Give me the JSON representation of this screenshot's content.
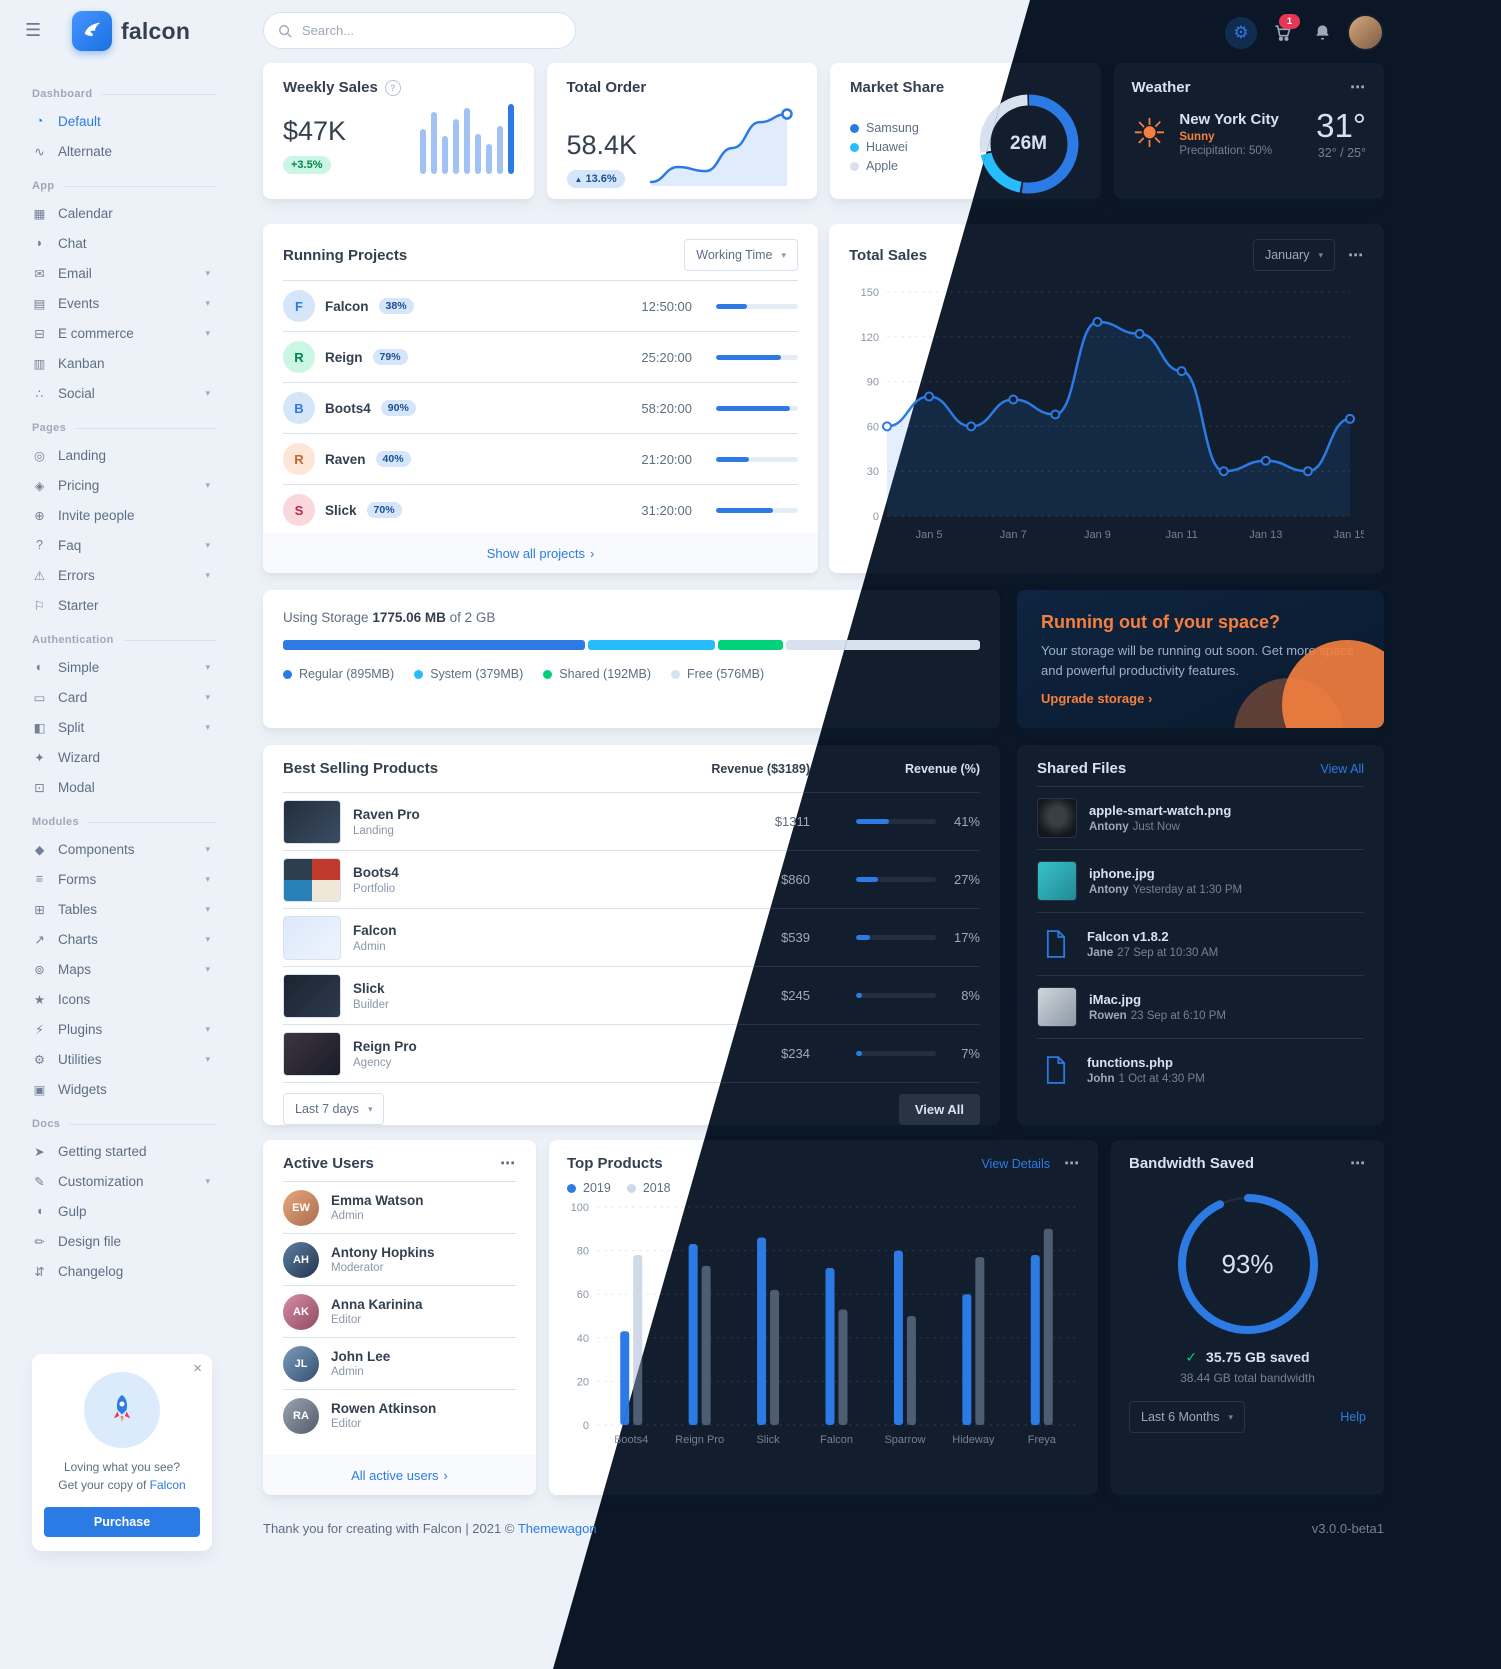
{
  "icons": {
    "hamburger": "☰",
    "ellipsis": "⋯",
    "chevron_down": "▾",
    "arrow_right": "›",
    "gear": "⚙",
    "close": "×",
    "check": "✓",
    "info": "?",
    "sun": "☀",
    "caret_up": "▲"
  },
  "colors": {
    "primary": "#2c7be5",
    "info": "#27bcfd",
    "success": "#00d27a",
    "warning": "#f5803e",
    "danger": "#e63757"
  },
  "brand": {
    "name": "falcon"
  },
  "topbar": {
    "search_placeholder": "Search...",
    "cart_badge": "1"
  },
  "sidebar": {
    "sections": [
      {
        "label": "Dashboard",
        "items": [
          {
            "label": "Default",
            "icon": "chart-pie",
            "state": "active"
          },
          {
            "label": "Alternate",
            "icon": "chart-line"
          }
        ]
      },
      {
        "label": "App",
        "items": [
          {
            "label": "Calendar",
            "icon": "calendar"
          },
          {
            "label": "Chat",
            "icon": "chat"
          },
          {
            "label": "Email",
            "icon": "email",
            "chevron": true
          },
          {
            "label": "Events",
            "icon": "events",
            "chevron": true
          },
          {
            "label": "E commerce",
            "icon": "ecommerce",
            "chevron": true
          },
          {
            "label": "Kanban",
            "icon": "kanban"
          },
          {
            "label": "Social",
            "icon": "share",
            "chevron": true
          }
        ]
      },
      {
        "label": "Pages",
        "items": [
          {
            "label": "Landing",
            "icon": "globe"
          },
          {
            "label": "Pricing",
            "icon": "tags",
            "chevron": true
          },
          {
            "label": "Invite people",
            "icon": "user-plus"
          },
          {
            "label": "Faq",
            "icon": "question",
            "chevron": true
          },
          {
            "label": "Errors",
            "icon": "warning",
            "chevron": true
          },
          {
            "label": "Starter",
            "icon": "flag"
          }
        ]
      },
      {
        "label": "Authentication",
        "items": [
          {
            "label": "Simple",
            "icon": "lock",
            "chevron": true
          },
          {
            "label": "Card",
            "icon": "card",
            "chevron": true
          },
          {
            "label": "Split",
            "icon": "split",
            "chevron": true
          },
          {
            "label": "Wizard",
            "icon": "wand"
          },
          {
            "label": "Modal",
            "icon": "modal"
          }
        ]
      },
      {
        "label": "Modules",
        "items": [
          {
            "label": "Components",
            "icon": "components",
            "chevron": true
          },
          {
            "label": "Forms",
            "icon": "forms",
            "chevron": true
          },
          {
            "label": "Tables",
            "icon": "tables",
            "chevron": true
          },
          {
            "label": "Charts",
            "icon": "charts",
            "chevron": true
          },
          {
            "label": "Maps",
            "icon": "maps",
            "chevron": true
          },
          {
            "label": "Icons",
            "icon": "star"
          },
          {
            "label": "Plugins",
            "icon": "plug",
            "chevron": true
          },
          {
            "label": "Utilities",
            "icon": "utilities",
            "chevron": true
          },
          {
            "label": "Widgets",
            "icon": "widgets"
          }
        ]
      },
      {
        "label": "Docs",
        "items": [
          {
            "label": "Getting started",
            "icon": "rocket"
          },
          {
            "label": "Customization",
            "icon": "customize",
            "chevron": true
          },
          {
            "label": "Gulp",
            "icon": "gulp"
          },
          {
            "label": "Design file",
            "icon": "pen"
          },
          {
            "label": "Changelog",
            "icon": "changelog"
          }
        ]
      }
    ],
    "promo": {
      "line1": "Loving what you see?",
      "line2_prefix": "Get your copy of",
      "link": "Falcon",
      "button": "Purchase"
    }
  },
  "cards": {
    "weekly_sales": {
      "title": "Weekly Sales",
      "value": "$47K",
      "badge": "+3.5%"
    },
    "total_order": {
      "title": "Total Order",
      "value": "58.4K",
      "badge": "13.6%"
    },
    "market_share": {
      "title": "Market Share"
    },
    "weather": {
      "title": "Weather",
      "city": "New York City",
      "condition": "Sunny",
      "precipitation": "Precipitation: 50%",
      "temp": "31°",
      "range": "32° / 25°"
    },
    "running_projects": {
      "title": "Running Projects",
      "filter": "Working Time",
      "footer_link": "Show all projects",
      "items": [
        {
          "letter": "F",
          "name": "Falcon",
          "pct": 38,
          "pct_label": "38%",
          "time": "12:50:00",
          "color": "primary"
        },
        {
          "letter": "R",
          "name": "Reign",
          "pct": 79,
          "pct_label": "79%",
          "time": "25:20:00",
          "color": "success"
        },
        {
          "letter": "B",
          "name": "Boots4",
          "pct": 90,
          "pct_label": "90%",
          "time": "58:20:00",
          "color": "primary"
        },
        {
          "letter": "R",
          "name": "Raven",
          "pct": 40,
          "pct_label": "40%",
          "time": "21:20:00",
          "color": "warning"
        },
        {
          "letter": "S",
          "name": "Slick",
          "pct": 70,
          "pct_label": "70%",
          "time": "31:20:00",
          "color": "danger"
        }
      ]
    },
    "total_sales": {
      "title": "Total Sales",
      "period": "January"
    },
    "storage": {
      "prefix": "Using Storage",
      "used": "1775.06 MB",
      "of": "of 2 GB",
      "total_mb": 2042,
      "segments": [
        {
          "label": "Regular (895MB)",
          "mb": 895,
          "color": "#2c7be5"
        },
        {
          "label": "System (379MB)",
          "mb": 379,
          "color": "#27bcfd"
        },
        {
          "label": "Shared (192MB)",
          "mb": 192,
          "color": "#00d27a"
        },
        {
          "label": "Free (576MB)",
          "mb": 576,
          "color": "#d8e2ef"
        }
      ]
    },
    "space_warning": {
      "title": "Running out of your space?",
      "body": "Your storage will be running out soon. Get more space and powerful productivity features.",
      "link": "Upgrade storage"
    },
    "best_selling": {
      "title": "Best Selling Products",
      "col_revenue": "Revenue ($3189)",
      "col_pct": "Revenue (%)",
      "filter": "Last 7 days",
      "view_all": "View All",
      "items": [
        {
          "name": "Raven Pro",
          "category": "Landing",
          "thumb": "raven",
          "revenue": "$1311",
          "pct": 41,
          "pct_label": "41%"
        },
        {
          "name": "Boots4",
          "category": "Portfolio",
          "thumb": "boots4",
          "revenue": "$860",
          "pct": 27,
          "pct_label": "27%"
        },
        {
          "name": "Falcon",
          "category": "Admin",
          "thumb": "falcon",
          "revenue": "$539",
          "pct": 17,
          "pct_label": "17%"
        },
        {
          "name": "Slick",
          "category": "Builder",
          "thumb": "slick",
          "revenue": "$245",
          "pct": 8,
          "pct_label": "8%"
        },
        {
          "name": "Reign Pro",
          "category": "Agency",
          "thumb": "reign",
          "revenue": "$234",
          "pct": 7,
          "pct_label": "7%"
        }
      ]
    },
    "shared_files": {
      "title": "Shared Files",
      "view_all": "View All",
      "items": [
        {
          "name": "apple-smart-watch.png",
          "user": "Antony",
          "time": "Just Now",
          "kind": "img-watch",
          "is_img": true
        },
        {
          "name": "iphone.jpg",
          "user": "Antony",
          "time": "Yesterday at 1:30 PM",
          "kind": "img-iphone",
          "is_img": true
        },
        {
          "name": "Falcon v1.8.2",
          "user": "Jane",
          "time": "27 Sep at 10:30 AM",
          "is_file": true
        },
        {
          "name": "iMac.jpg",
          "user": "Rowen",
          "time": "23 Sep at 6:10 PM",
          "kind": "img-imac",
          "is_img": true
        },
        {
          "name": "functions.php",
          "user": "John",
          "time": "1 Oct at 4:30 PM",
          "is_file": true
        }
      ]
    },
    "active_users": {
      "title": "Active Users",
      "footer_link": "All active users",
      "items": [
        {
          "name": "Emma Watson",
          "role": "Admin",
          "initials": "EW",
          "avatar": "a1",
          "online": true
        },
        {
          "name": "Antony Hopkins",
          "role": "Moderator",
          "initials": "AH",
          "avatar": "a2",
          "online": true
        },
        {
          "name": "Anna Karinina",
          "role": "Editor",
          "initials": "AK",
          "avatar": "a3",
          "online": true
        },
        {
          "name": "John Lee",
          "role": "Admin",
          "initials": "JL",
          "avatar": "a4"
        },
        {
          "name": "Rowen Atkinson",
          "role": "Editor",
          "initials": "RA",
          "avatar": "a5"
        }
      ]
    },
    "top_products": {
      "title": "Top Products",
      "view_details": "View Details"
    },
    "bandwidth": {
      "title": "Bandwidth Saved",
      "saved": "35.75 GB saved",
      "total": "38.44 GB total bandwidth",
      "filter": "Last 6 Months",
      "help": "Help"
    }
  },
  "footer": {
    "text": "Thank you for creating with Falcon | 2021 ©",
    "link": "Themewagon",
    "version": "v3.0.0-beta1"
  },
  "chart_data": [
    {
      "id": "weekly_sales",
      "type": "bar",
      "values": [
        45,
        62,
        38,
        55,
        66,
        40,
        30,
        48,
        70
      ],
      "color": "#2c7be5",
      "title": "Weekly Sales",
      "note": "relative bar heights, estimated"
    },
    {
      "id": "total_order",
      "type": "line",
      "values": [
        20,
        42,
        36,
        70,
        108,
        120
      ],
      "color": "#2c7be5",
      "title": "Total Order",
      "note": "estimated trend"
    },
    {
      "id": "market_share",
      "type": "pie",
      "center_label": "26M",
      "series": [
        {
          "label": "Samsung",
          "value": 53,
          "color": "#2c7be5"
        },
        {
          "label": "Huawei",
          "value": 19,
          "color": "#27bcfd"
        },
        {
          "label": "Apple",
          "value": 28,
          "color": "#d8e2ef"
        }
      ],
      "note": "shares estimated from donut"
    },
    {
      "id": "total_sales",
      "type": "line",
      "title": "Total Sales",
      "x": [
        "Jan 4",
        "Jan 5",
        "Jan 6",
        "Jan 7",
        "Jan 8",
        "Jan 9",
        "Jan 10",
        "Jan 11",
        "Jan 12",
        "Jan 13",
        "Jan 14",
        "Jan 15"
      ],
      "values": [
        60,
        80,
        60,
        78,
        68,
        130,
        122,
        97,
        30,
        37,
        30,
        65
      ],
      "ylim": [
        0,
        150
      ],
      "yticks": [
        0,
        30,
        60,
        90,
        120,
        150
      ],
      "xticks": [
        "Jan 5",
        "Jan 7",
        "Jan 9",
        "Jan 11",
        "Jan 13",
        "Jan 15"
      ],
      "color": "#2c7be5",
      "note": "y values estimated from gridlines"
    },
    {
      "id": "top_products",
      "type": "bar",
      "title": "Top Products",
      "categories": [
        "Boots4",
        "Reign Pro",
        "Slick",
        "Falcon",
        "Sparrow",
        "Hideway",
        "Freya"
      ],
      "series": [
        {
          "name": "2019",
          "values": [
            43,
            83,
            86,
            72,
            80,
            60,
            78
          ],
          "color": "#2c7be5"
        },
        {
          "name": "2018",
          "values": [
            78,
            73,
            62,
            53,
            50,
            77,
            90
          ],
          "color": "#a0aec0"
        }
      ],
      "ylim": [
        0,
        100
      ],
      "yticks": [
        0,
        20,
        40,
        60,
        80,
        100
      ],
      "note": "values estimated"
    },
    {
      "id": "bandwidth_saved",
      "type": "donut",
      "value": 93,
      "label": "93%",
      "color": "#2c7be5"
    }
  ]
}
